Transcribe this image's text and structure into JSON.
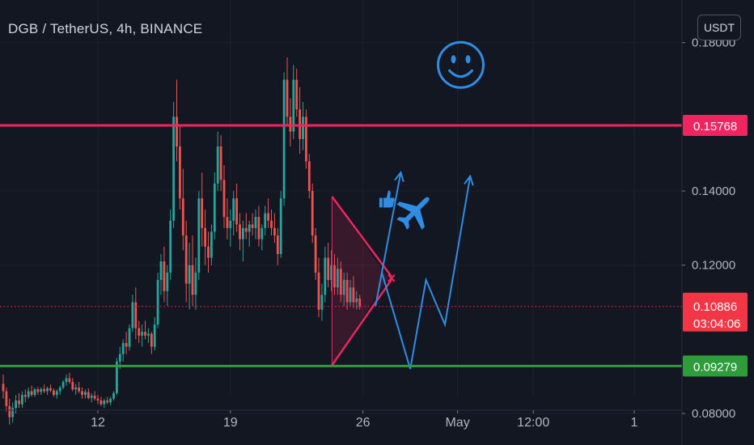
{
  "header": {
    "title": "DGB / TetherUS, 4h, BINANCE",
    "currency_button": "USDT"
  },
  "chart_data": {
    "type": "candlestick",
    "symbol": "DGB / TetherUS",
    "interval": "4h",
    "exchange": "BINANCE",
    "ylim": [
      0.0715,
      0.1915
    ],
    "y_ticks": [
      {
        "value": 0.18,
        "label": "0.18000"
      },
      {
        "value": 0.14,
        "label": "0.14000"
      },
      {
        "value": 0.12,
        "label": "0.12000"
      },
      {
        "value": 0.08,
        "label": "0.08000"
      }
    ],
    "x_ticks": [
      {
        "label": "12",
        "bar": 30
      },
      {
        "label": "19",
        "bar": 72
      },
      {
        "label": "26",
        "bar": 114
      },
      {
        "label": "May",
        "bar": 144
      },
      {
        "label": "12:00",
        "bar": 168
      },
      {
        "label": "1",
        "bar": 200
      }
    ],
    "levels": [
      {
        "name": "resistance",
        "value": 0.15768,
        "label": "0.15768",
        "color": "#f0245f"
      },
      {
        "name": "support",
        "value": 0.09279,
        "label": "0.09279",
        "color": "#2e9c3b"
      }
    ],
    "last_price": {
      "value": 0.10886,
      "label": "0.10886",
      "countdown": "03:04:06",
      "color": "#f23645"
    },
    "colors": {
      "up": "#26a69a",
      "down": "#ef5350",
      "projection": "#2f8de4",
      "annotation": "#f0245f"
    },
    "candles": [
      [
        0.088,
        0.0905,
        0.084,
        0.086
      ],
      [
        0.086,
        0.087,
        0.0805,
        0.082
      ],
      [
        0.082,
        0.084,
        0.077,
        0.079
      ],
      [
        0.079,
        0.083,
        0.0775,
        0.0815
      ],
      [
        0.0815,
        0.085,
        0.08,
        0.0835
      ],
      [
        0.0835,
        0.0855,
        0.0815,
        0.0825
      ],
      [
        0.0825,
        0.086,
        0.0815,
        0.085
      ],
      [
        0.085,
        0.0865,
        0.083,
        0.0845
      ],
      [
        0.0845,
        0.087,
        0.084,
        0.086
      ],
      [
        0.086,
        0.0875,
        0.0845,
        0.085
      ],
      [
        0.085,
        0.087,
        0.0845,
        0.0865
      ],
      [
        0.0865,
        0.0872,
        0.085,
        0.0858
      ],
      [
        0.0858,
        0.087,
        0.085,
        0.0866
      ],
      [
        0.0866,
        0.0878,
        0.0855,
        0.086
      ],
      [
        0.086,
        0.0872,
        0.085,
        0.0868
      ],
      [
        0.0868,
        0.0878,
        0.0858,
        0.0862
      ],
      [
        0.0862,
        0.0868,
        0.0845,
        0.085
      ],
      [
        0.085,
        0.0865,
        0.084,
        0.086
      ],
      [
        0.086,
        0.0875,
        0.085,
        0.087
      ],
      [
        0.087,
        0.089,
        0.0865,
        0.0885
      ],
      [
        0.0885,
        0.0905,
        0.0875,
        0.0895
      ],
      [
        0.0895,
        0.091,
        0.088,
        0.0885
      ],
      [
        0.0885,
        0.0895,
        0.086,
        0.0865
      ],
      [
        0.0865,
        0.088,
        0.085,
        0.087
      ],
      [
        0.087,
        0.0885,
        0.0855,
        0.086
      ],
      [
        0.086,
        0.087,
        0.084,
        0.085
      ],
      [
        0.085,
        0.0865,
        0.084,
        0.0858
      ],
      [
        0.0858,
        0.0868,
        0.0838,
        0.0842
      ],
      [
        0.0842,
        0.0855,
        0.083,
        0.0848
      ],
      [
        0.0848,
        0.086,
        0.0835,
        0.084
      ],
      [
        0.084,
        0.085,
        0.0825,
        0.0835
      ],
      [
        0.0835,
        0.0845,
        0.082,
        0.0825
      ],
      [
        0.0825,
        0.084,
        0.0815,
        0.0835
      ],
      [
        0.0835,
        0.0845,
        0.0825,
        0.083
      ],
      [
        0.083,
        0.0845,
        0.0822,
        0.084
      ],
      [
        0.084,
        0.086,
        0.0835,
        0.0855
      ],
      [
        0.0855,
        0.095,
        0.085,
        0.094
      ],
      [
        0.094,
        0.098,
        0.092,
        0.096
      ],
      [
        0.096,
        0.1,
        0.094,
        0.099
      ],
      [
        0.099,
        0.102,
        0.096,
        0.098
      ],
      [
        0.098,
        0.104,
        0.097,
        0.103
      ],
      [
        0.103,
        0.112,
        0.102,
        0.11
      ],
      [
        0.11,
        0.114,
        0.1,
        0.103
      ],
      [
        0.103,
        0.105,
        0.099,
        0.101
      ],
      [
        0.101,
        0.104,
        0.098,
        0.102
      ],
      [
        0.102,
        0.105,
        0.1,
        0.101
      ],
      [
        0.101,
        0.103,
        0.099,
        0.1015
      ],
      [
        0.1015,
        0.102,
        0.096,
        0.098
      ],
      [
        0.098,
        0.106,
        0.097,
        0.104
      ],
      [
        0.104,
        0.118,
        0.103,
        0.116
      ],
      [
        0.116,
        0.123,
        0.112,
        0.121
      ],
      [
        0.121,
        0.125,
        0.11,
        0.113
      ],
      [
        0.113,
        0.12,
        0.109,
        0.118
      ],
      [
        0.118,
        0.135,
        0.116,
        0.132
      ],
      [
        0.132,
        0.164,
        0.13,
        0.16
      ],
      [
        0.16,
        0.17,
        0.148,
        0.152
      ],
      [
        0.152,
        0.158,
        0.135,
        0.138
      ],
      [
        0.138,
        0.146,
        0.124,
        0.128
      ],
      [
        0.128,
        0.132,
        0.11,
        0.115
      ],
      [
        0.115,
        0.126,
        0.108,
        0.12
      ],
      [
        0.12,
        0.128,
        0.109,
        0.112
      ],
      [
        0.112,
        0.122,
        0.108,
        0.118
      ],
      [
        0.118,
        0.14,
        0.116,
        0.138
      ],
      [
        0.138,
        0.145,
        0.125,
        0.13
      ],
      [
        0.13,
        0.135,
        0.12,
        0.125
      ],
      [
        0.125,
        0.129,
        0.118,
        0.122
      ],
      [
        0.122,
        0.131,
        0.12,
        0.129
      ],
      [
        0.129,
        0.145,
        0.127,
        0.142
      ],
      [
        0.142,
        0.156,
        0.14,
        0.152
      ],
      [
        0.152,
        0.155,
        0.14,
        0.143
      ],
      [
        0.143,
        0.147,
        0.13,
        0.133
      ],
      [
        0.133,
        0.138,
        0.127,
        0.13
      ],
      [
        0.13,
        0.135,
        0.125,
        0.132
      ],
      [
        0.132,
        0.14,
        0.128,
        0.138
      ],
      [
        0.138,
        0.142,
        0.129,
        0.131
      ],
      [
        0.131,
        0.134,
        0.124,
        0.127
      ],
      [
        0.127,
        0.132,
        0.121,
        0.13
      ],
      [
        0.13,
        0.134,
        0.127,
        0.129
      ],
      [
        0.129,
        0.132,
        0.125,
        0.131
      ],
      [
        0.131,
        0.134,
        0.128,
        0.13
      ],
      [
        0.13,
        0.135,
        0.127,
        0.133
      ],
      [
        0.133,
        0.136,
        0.125,
        0.127
      ],
      [
        0.127,
        0.131,
        0.124,
        0.13
      ],
      [
        0.13,
        0.136,
        0.128,
        0.134
      ],
      [
        0.134,
        0.138,
        0.13,
        0.132
      ],
      [
        0.132,
        0.135,
        0.128,
        0.13
      ],
      [
        0.13,
        0.134,
        0.126,
        0.128
      ],
      [
        0.128,
        0.13,
        0.12,
        0.123
      ],
      [
        0.123,
        0.14,
        0.122,
        0.138
      ],
      [
        0.138,
        0.172,
        0.136,
        0.17
      ],
      [
        0.17,
        0.176,
        0.158,
        0.16
      ],
      [
        0.16,
        0.165,
        0.152,
        0.156
      ],
      [
        0.156,
        0.174,
        0.154,
        0.17
      ],
      [
        0.17,
        0.173,
        0.16,
        0.162
      ],
      [
        0.162,
        0.168,
        0.15,
        0.154
      ],
      [
        0.154,
        0.164,
        0.151,
        0.16
      ],
      [
        0.16,
        0.162,
        0.146,
        0.148
      ],
      [
        0.148,
        0.15,
        0.138,
        0.14
      ],
      [
        0.14,
        0.142,
        0.126,
        0.128
      ],
      [
        0.128,
        0.13,
        0.116,
        0.118
      ],
      [
        0.118,
        0.122,
        0.106,
        0.108
      ],
      [
        0.108,
        0.115,
        0.105,
        0.112
      ],
      [
        0.112,
        0.125,
        0.11,
        0.122
      ],
      [
        0.122,
        0.126,
        0.114,
        0.116
      ],
      [
        0.116,
        0.124,
        0.113,
        0.12
      ],
      [
        0.12,
        0.123,
        0.112,
        0.114
      ],
      [
        0.114,
        0.122,
        0.112,
        0.119
      ],
      [
        0.119,
        0.121,
        0.11,
        0.112
      ],
      [
        0.112,
        0.118,
        0.109,
        0.116
      ],
      [
        0.116,
        0.118,
        0.108,
        0.11
      ],
      [
        0.11,
        0.116,
        0.109,
        0.114
      ],
      [
        0.114,
        0.117,
        0.1085,
        0.11
      ],
      [
        0.11,
        0.113,
        0.108,
        0.111
      ],
      [
        0.111,
        0.112,
        0.108,
        0.1089
      ]
    ]
  }
}
